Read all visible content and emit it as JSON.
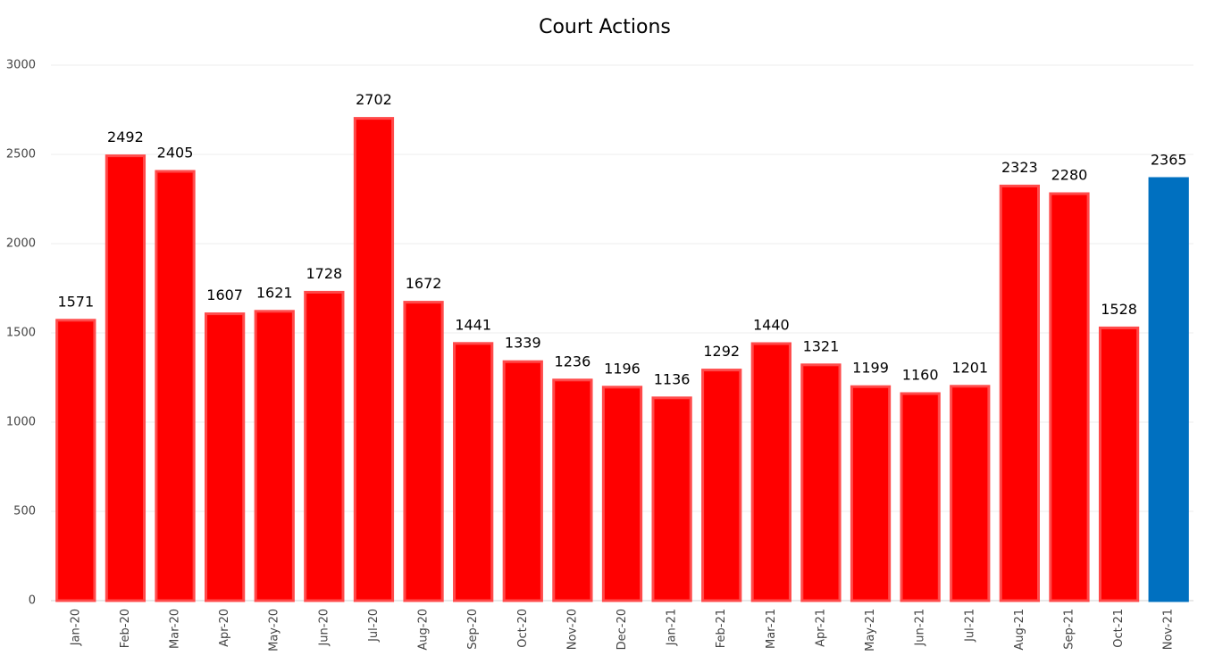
{
  "chart_data": {
    "type": "bar",
    "title": "Court Actions",
    "categories": [
      "Jan-20",
      "Feb-20",
      "Mar-20",
      "Apr-20",
      "May-20",
      "Jun-20",
      "Jul-20",
      "Aug-20",
      "Sep-20",
      "Oct-20",
      "Nov-20",
      "Dec-20",
      "Jan-21",
      "Feb-21",
      "Mar-21",
      "Apr-21",
      "May-21",
      "Jun-21",
      "Jul-21",
      "Aug-21",
      "Sep-21",
      "Oct-21",
      "Nov-21"
    ],
    "values": [
      1571,
      2492,
      2405,
      1607,
      1621,
      1728,
      2702,
      1672,
      1441,
      1339,
      1236,
      1196,
      1136,
      1292,
      1440,
      1321,
      1199,
      1160,
      1201,
      2323,
      2280,
      1528,
      2365
    ],
    "colors": [
      "#ff0000",
      "#ff0000",
      "#ff0000",
      "#ff0000",
      "#ff0000",
      "#ff0000",
      "#ff0000",
      "#ff0000",
      "#ff0000",
      "#ff0000",
      "#ff0000",
      "#ff0000",
      "#ff0000",
      "#ff0000",
      "#ff0000",
      "#ff0000",
      "#ff0000",
      "#ff0000",
      "#ff0000",
      "#ff0000",
      "#ff0000",
      "#ff0000",
      "#0070c0"
    ],
    "ylim": [
      0,
      3000
    ],
    "yticks": [
      0,
      500,
      1000,
      1500,
      2000,
      2500,
      3000
    ],
    "grid": true
  }
}
